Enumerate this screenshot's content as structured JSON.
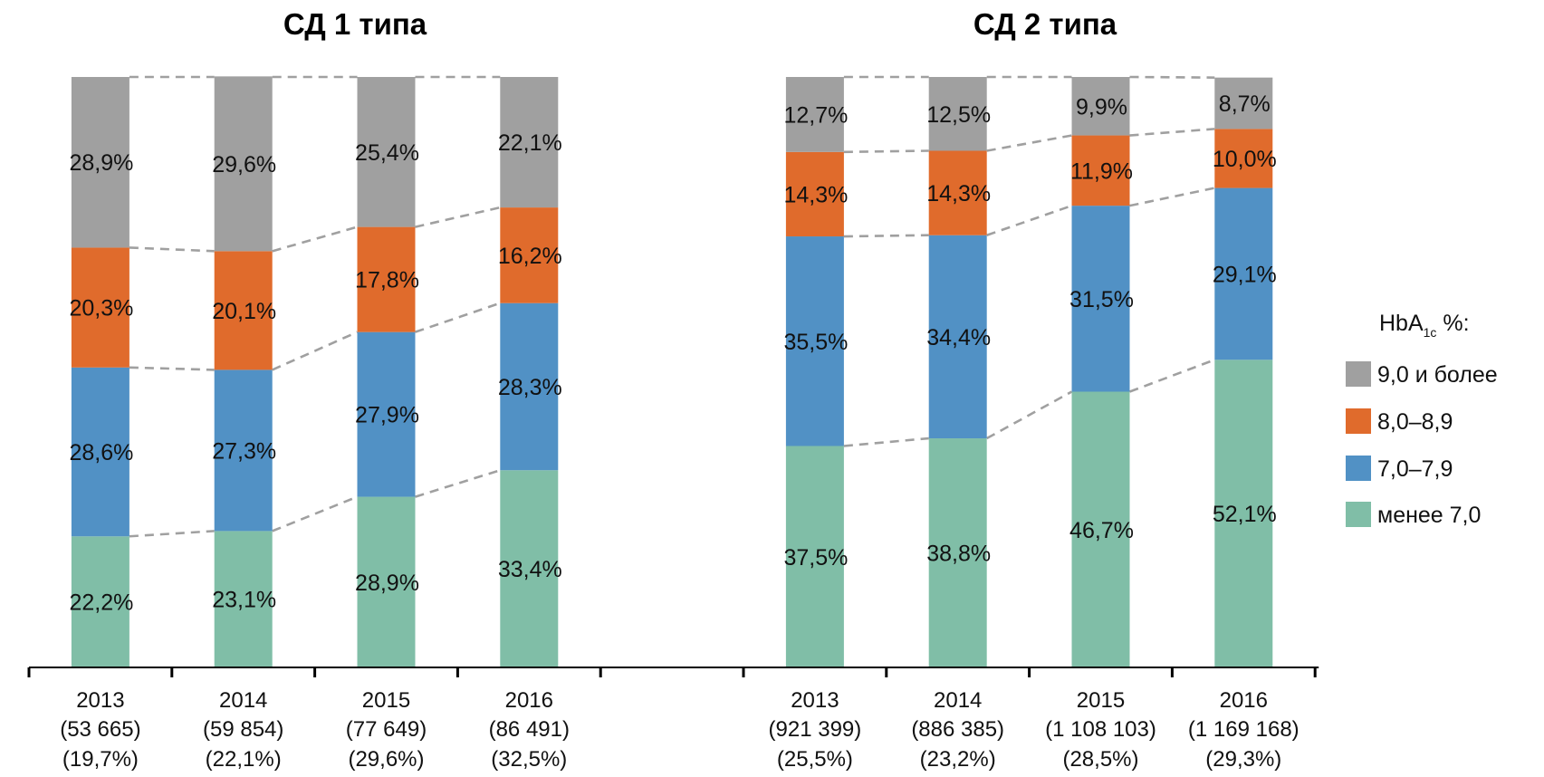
{
  "chart_data": {
    "type": "bar",
    "stacked": true,
    "percent_stacked": true,
    "ylim": [
      0,
      100
    ],
    "grid": false,
    "legend": {
      "title_main": "HbA",
      "title_sub": "1c",
      "title_suffix": " %:",
      "placement": "right",
      "items": [
        {
          "key": "ge9",
          "label": "9,0 и более",
          "color": "#A0A0A0"
        },
        {
          "key": "8to89",
          "label": "8,0–8,9",
          "color": "#E06B2C"
        },
        {
          "key": "7to79",
          "label": "7,0–7,9",
          "color": "#5191C5"
        },
        {
          "key": "lt7",
          "label": "менее 7,0",
          "color": "#80BEA7"
        }
      ]
    },
    "stack_order_bottom_to_top": [
      "lt7",
      "7to79",
      "8to89",
      "ge9"
    ],
    "connector_color": "#A0A0A0",
    "axis_color": "#000000",
    "panels": [
      {
        "title": "СД 1 типа",
        "categories": [
          {
            "year": "2013",
            "n": "(53 665)",
            "share": "(19,7%)"
          },
          {
            "year": "2014",
            "n": "(59 854)",
            "share": "(22,1%)"
          },
          {
            "year": "2015",
            "n": "(77 649)",
            "share": "(29,6%)"
          },
          {
            "year": "2016",
            "n": "(86 491)",
            "share": "(32,5%)"
          }
        ],
        "series": [
          {
            "key": "lt7",
            "name": "менее 7,0",
            "values": [
              22.2,
              23.1,
              28.9,
              33.4
            ],
            "labels": [
              "22,2%",
              "23,1%",
              "28,9%",
              "33,4%"
            ]
          },
          {
            "key": "7to79",
            "name": "7,0–7,9",
            "values": [
              28.6,
              27.3,
              27.9,
              28.3
            ],
            "labels": [
              "28,6%",
              "27,3%",
              "27,9%",
              "28,3%"
            ]
          },
          {
            "key": "8to89",
            "name": "8,0–8,9",
            "values": [
              20.3,
              20.1,
              17.8,
              16.2
            ],
            "labels": [
              "20,3%",
              "20,1%",
              "17,8%",
              "16,2%"
            ]
          },
          {
            "key": "ge9",
            "name": "9,0 и более",
            "values": [
              28.9,
              29.6,
              25.4,
              22.1
            ],
            "labels": [
              "28,9%",
              "29,6%",
              "25,4%",
              "22,1%"
            ]
          }
        ]
      },
      {
        "title": "СД 2 типа",
        "categories": [
          {
            "year": "2013",
            "n": "(921 399)",
            "share": "(25,5%)"
          },
          {
            "year": "2014",
            "n": "(886 385)",
            "share": "(23,2%)"
          },
          {
            "year": "2015",
            "n": "(1 108 103)",
            "share": "(28,5%)"
          },
          {
            "year": "2016",
            "n": "(1 169 168)",
            "share": "(29,3%)"
          }
        ],
        "series": [
          {
            "key": "lt7",
            "name": "менее 7,0",
            "values": [
              37.5,
              38.8,
              46.7,
              52.1
            ],
            "labels": [
              "37,5%",
              "38,8%",
              "46,7%",
              "52,1%"
            ]
          },
          {
            "key": "7to79",
            "name": "7,0–7,9",
            "values": [
              35.5,
              34.4,
              31.5,
              29.1
            ],
            "labels": [
              "35,5%",
              "34,4%",
              "31,5%",
              "29,1%"
            ]
          },
          {
            "key": "8to89",
            "name": "8,0–8,9",
            "values": [
              14.3,
              14.3,
              11.9,
              10.0
            ],
            "labels": [
              "14,3%",
              "14,3%",
              "11,9%",
              "10,0%"
            ]
          },
          {
            "key": "ge9",
            "name": "9,0 и более",
            "values": [
              12.7,
              12.5,
              9.9,
              8.7
            ],
            "labels": [
              "12,7%",
              "12,5%",
              "9,9%",
              "8,7%"
            ]
          }
        ]
      }
    ]
  }
}
